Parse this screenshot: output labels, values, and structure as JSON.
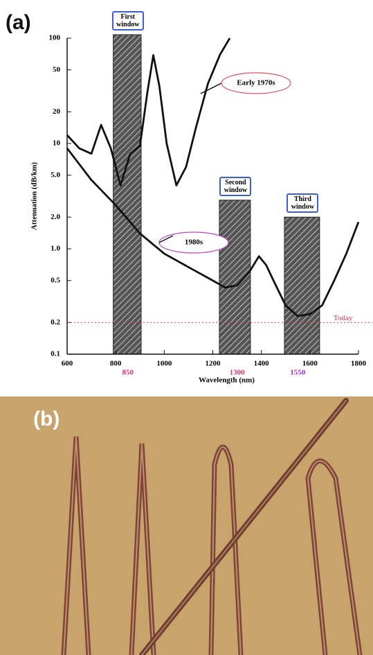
{
  "panel_labels": [
    "(a)",
    "(b)"
  ],
  "chart_data": {
    "type": "line",
    "y_label": "Attenuation (dB/km)",
    "x_label": "Wavelength (nm)",
    "xlim": [
      600,
      1800
    ],
    "xticks": [
      600,
      800,
      1000,
      1200,
      1400,
      1600,
      1800
    ],
    "ylim": [
      0.1,
      100
    ],
    "log_y": true,
    "yticks": [
      0.1,
      0.2,
      0.5,
      {
        "value": 1,
        "label": "1.0"
      },
      {
        "value": 2,
        "label": "2.0"
      },
      {
        "value": 5,
        "label": "5.0"
      },
      10,
      20,
      50,
      100
    ],
    "series": [
      {
        "name": "Early 1970s",
        "color": "#111111",
        "callout_color": "#e05060",
        "x": [
          600,
          650,
          700,
          740,
          780,
          820,
          860,
          900,
          930,
          955,
          980,
          1010,
          1050,
          1090,
          1130,
          1180,
          1230,
          1270
        ],
        "values": [
          12,
          9,
          8,
          15,
          9,
          4,
          8,
          9.5,
          30,
          69,
          35,
          10,
          4,
          6,
          14,
          37,
          70,
          100
        ]
      },
      {
        "name": "1980s",
        "color": "#111111",
        "callout_color": "#c040c0",
        "x": [
          600,
          700,
          800,
          900,
          1000,
          1100,
          1200,
          1250,
          1300,
          1350,
          1390,
          1420,
          1450,
          1500,
          1550,
          1600,
          1650,
          1700,
          1750,
          1800
        ],
        "values": [
          9,
          4.5,
          2.6,
          1.4,
          0.9,
          0.67,
          0.5,
          0.43,
          0.45,
          0.6,
          0.85,
          0.7,
          0.5,
          0.29,
          0.23,
          0.24,
          0.29,
          0.5,
          0.9,
          1.8
        ]
      }
    ],
    "windows": [
      {
        "label": "First window",
        "range": [
          790,
          905
        ],
        "marker": 850,
        "marker_color": "#e0306a"
      },
      {
        "label": "Second window",
        "range": [
          1227,
          1355
        ],
        "marker": 1300,
        "marker_color": "#e0306a"
      },
      {
        "label": "Third window",
        "range": [
          1495,
          1640
        ],
        "marker": 1550,
        "marker_color": "#9b30e0"
      }
    ],
    "today": {
      "label": "Today",
      "value": 0.2,
      "color": "#e03040"
    }
  }
}
